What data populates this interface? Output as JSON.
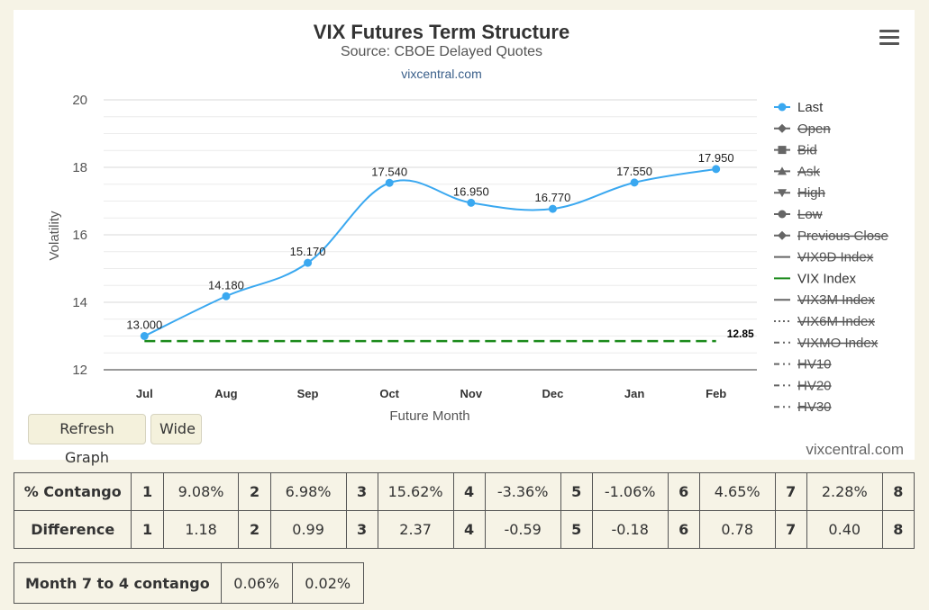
{
  "chart": {
    "title": "VIX Futures Term Structure",
    "subtitle": "Source: CBOE Delayed Quotes",
    "link_text": "vixcentral.com",
    "credit": "vixcentral.com"
  },
  "buttons": {
    "refresh": "Refresh Graph",
    "wide": "Wide"
  },
  "chart_data": {
    "type": "line",
    "xlabel": "Future Month",
    "ylabel": "Volatility",
    "categories": [
      "Jul",
      "Aug",
      "Sep",
      "Oct",
      "Nov",
      "Dec",
      "Jan",
      "Feb"
    ],
    "ylim": [
      12,
      20
    ],
    "yticks": [
      "12",
      "14",
      "16",
      "18",
      "20"
    ],
    "grid": true,
    "legend_position": "right",
    "series": [
      {
        "name": "Last",
        "color": "#3aa8f0",
        "values": [
          13.0,
          14.18,
          15.17,
          17.54,
          16.95,
          16.77,
          17.55,
          17.95
        ],
        "labels": [
          "13.000",
          "14.180",
          "15.170",
          "17.540",
          "16.950",
          "16.770",
          "17.550",
          "17.950"
        ]
      },
      {
        "name": "VIX Index",
        "color": "#1a8a1a",
        "style": "dashed",
        "values": [
          12.85,
          12.85,
          12.85,
          12.85,
          12.85,
          12.85,
          12.85,
          12.85
        ],
        "end_label": "12.85"
      }
    ],
    "legend": [
      {
        "name": "Last",
        "symbol": "circle",
        "active": true,
        "color": "#3aa8f0"
      },
      {
        "name": "Open",
        "symbol": "diamond",
        "active": false
      },
      {
        "name": "Bid",
        "symbol": "square",
        "active": false
      },
      {
        "name": "Ask",
        "symbol": "triangle",
        "active": false
      },
      {
        "name": "High",
        "symbol": "triangle-down",
        "active": false
      },
      {
        "name": "Low",
        "symbol": "circle",
        "active": false
      },
      {
        "name": "Previous Close",
        "symbol": "diamond",
        "active": false
      },
      {
        "name": "VIX9D Index",
        "symbol": "line",
        "active": false
      },
      {
        "name": "VIX Index",
        "symbol": "line",
        "active": true,
        "color": "#1a8a1a"
      },
      {
        "name": "VIX3M Index",
        "symbol": "line",
        "active": false
      },
      {
        "name": "VIX6M Index",
        "symbol": "dotted",
        "active": false
      },
      {
        "name": "VIXMO Index",
        "symbol": "dashdot",
        "active": false
      },
      {
        "name": "HV10",
        "symbol": "dashdot",
        "active": false
      },
      {
        "name": "HV20",
        "symbol": "dashdot",
        "active": false
      },
      {
        "name": "HV30",
        "symbol": "dashdot",
        "active": false
      }
    ]
  },
  "stats_table": {
    "rows": [
      {
        "label": "% Contango",
        "cells": [
          "1",
          "9.08%",
          "2",
          "6.98%",
          "3",
          "15.62%",
          "4",
          "-3.36%",
          "5",
          "-1.06%",
          "6",
          "4.65%",
          "7",
          "2.28%",
          "8"
        ]
      },
      {
        "label": "Difference",
        "cells": [
          "1",
          "1.18",
          "2",
          "0.99",
          "3",
          "2.37",
          "4",
          "-0.59",
          "5",
          "-0.18",
          "6",
          "0.78",
          "7",
          "0.40",
          "8"
        ]
      }
    ]
  },
  "month_table": {
    "label": "Month 7 to 4 contango",
    "values": [
      "0.06%",
      "0.02%"
    ]
  }
}
